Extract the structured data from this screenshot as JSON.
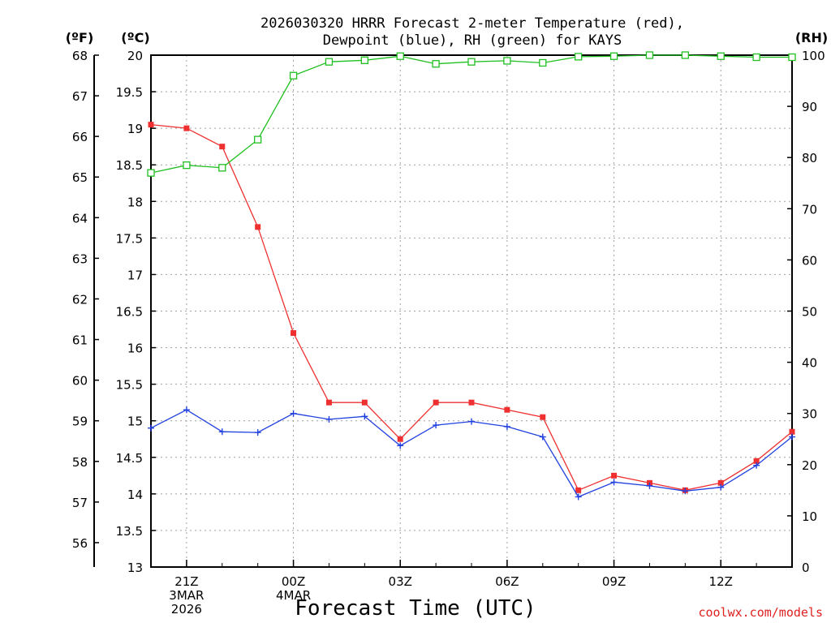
{
  "chart_data": {
    "type": "line",
    "title_line1": "2026030320 HRRR Forecast 2-meter Temperature (red),",
    "title_line2": "Dewpoint (blue), RH (green) for KAYS",
    "xlabel": "Forecast Time (UTC)",
    "credit": "coolwx.com/models",
    "units": {
      "fahrenheit": "(ºF)",
      "celsius": "(ºC)",
      "rh": "(RH)"
    },
    "y_celsius_range": [
      13,
      20
    ],
    "y_celsius_ticks": [
      "13",
      "13.5",
      "14",
      "14.5",
      "15",
      "15.5",
      "16",
      "16.5",
      "17",
      "17.5",
      "18",
      "18.5",
      "19",
      "19.5",
      "20"
    ],
    "y_fahrenheit_ticks": [
      "56",
      "57",
      "58",
      "59",
      "60",
      "61",
      "62",
      "63",
      "64",
      "65",
      "66",
      "67",
      "68"
    ],
    "y_rh_range": [
      0,
      100
    ],
    "y_rh_ticks": [
      "0",
      "10",
      "20",
      "30",
      "40",
      "50",
      "60",
      "70",
      "80",
      "90",
      "100"
    ],
    "x_hours": [
      "20Z",
      "21Z",
      "22Z",
      "23Z",
      "00Z",
      "01Z",
      "02Z",
      "03Z",
      "04Z",
      "05Z",
      "06Z",
      "07Z",
      "08Z",
      "09Z",
      "10Z",
      "11Z",
      "12Z",
      "13Z",
      "14Z"
    ],
    "x_tick_labels": [
      {
        "index": 1,
        "lines": [
          "21Z",
          "3MAR",
          "2026"
        ]
      },
      {
        "index": 4,
        "lines": [
          "00Z",
          "4MAR"
        ]
      },
      {
        "index": 7,
        "lines": [
          "03Z"
        ]
      },
      {
        "index": 10,
        "lines": [
          "06Z"
        ]
      },
      {
        "index": 13,
        "lines": [
          "09Z"
        ]
      },
      {
        "index": 16,
        "lines": [
          "12Z"
        ]
      }
    ],
    "grid": true,
    "series": [
      {
        "name": "Temperature",
        "unit": "C",
        "color": "#f03030",
        "marker": "filled-square",
        "values": [
          19.05,
          19.0,
          18.75,
          17.65,
          16.2,
          15.25,
          15.25,
          14.75,
          15.25,
          15.25,
          15.15,
          15.05,
          14.05,
          14.25,
          14.15,
          14.05,
          14.15,
          14.45,
          14.85
        ]
      },
      {
        "name": "Dewpoint",
        "unit": "C",
        "color": "#2040e0",
        "marker": "plus",
        "values": [
          14.9,
          15.15,
          14.85,
          14.84,
          15.1,
          15.02,
          15.06,
          14.66,
          14.94,
          14.99,
          14.92,
          14.78,
          13.96,
          14.16,
          14.11,
          14.04,
          14.09,
          14.39,
          14.78
        ]
      },
      {
        "name": "RH",
        "unit": "%",
        "color": "#20c020",
        "marker": "open-square",
        "values": [
          77,
          78.5,
          78,
          83.5,
          96,
          98.7,
          99,
          99.8,
          98.3,
          98.7,
          98.9,
          98.5,
          99.7,
          99.8,
          100,
          100,
          99.8,
          99.6,
          99.6
        ]
      }
    ]
  }
}
